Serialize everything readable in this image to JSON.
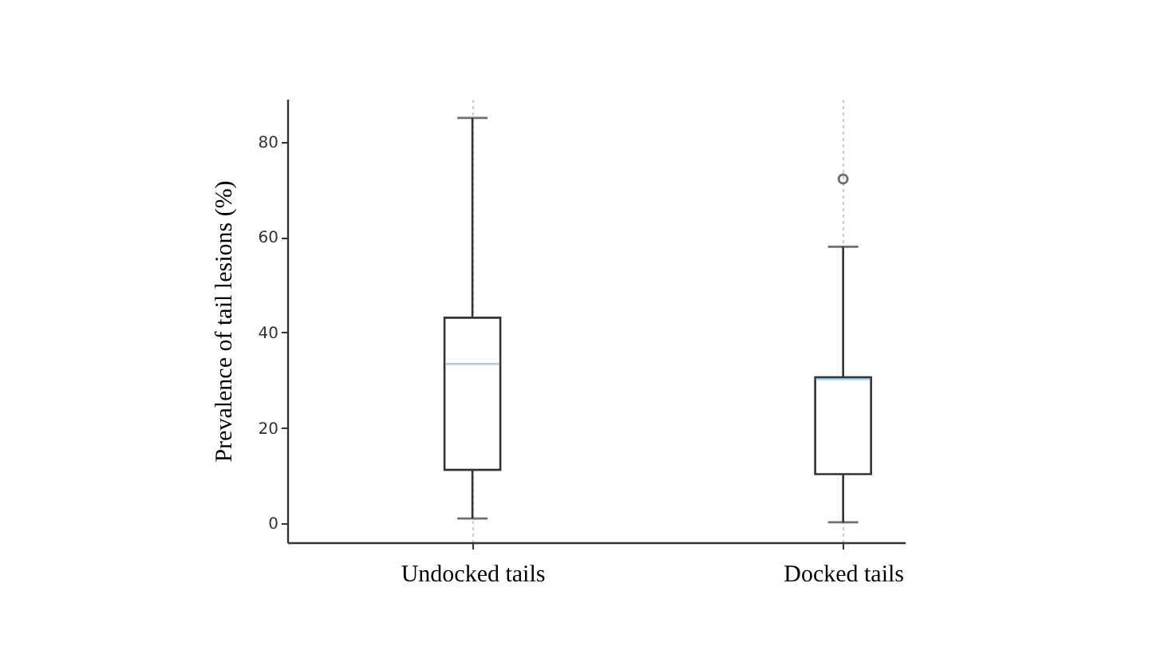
{
  "chart_data": {
    "type": "box",
    "ylabel": "Prevalence of tail lesions (%)",
    "categories": [
      "Undocked tails",
      "Docked tails"
    ],
    "boxes": [
      {
        "low": 1,
        "q1": 11.2,
        "median": 33.4,
        "q3": 43.1,
        "high": 85
      },
      {
        "low": 0.2,
        "q1": 10.3,
        "median": 30.2,
        "q3": 30.6,
        "high": 58,
        "outliers": [
          72.2
        ]
      }
    ],
    "ylim": [
      -4,
      89
    ],
    "yticks": [
      0,
      20,
      40,
      60,
      80
    ],
    "grid": "x",
    "marker": "circle"
  }
}
